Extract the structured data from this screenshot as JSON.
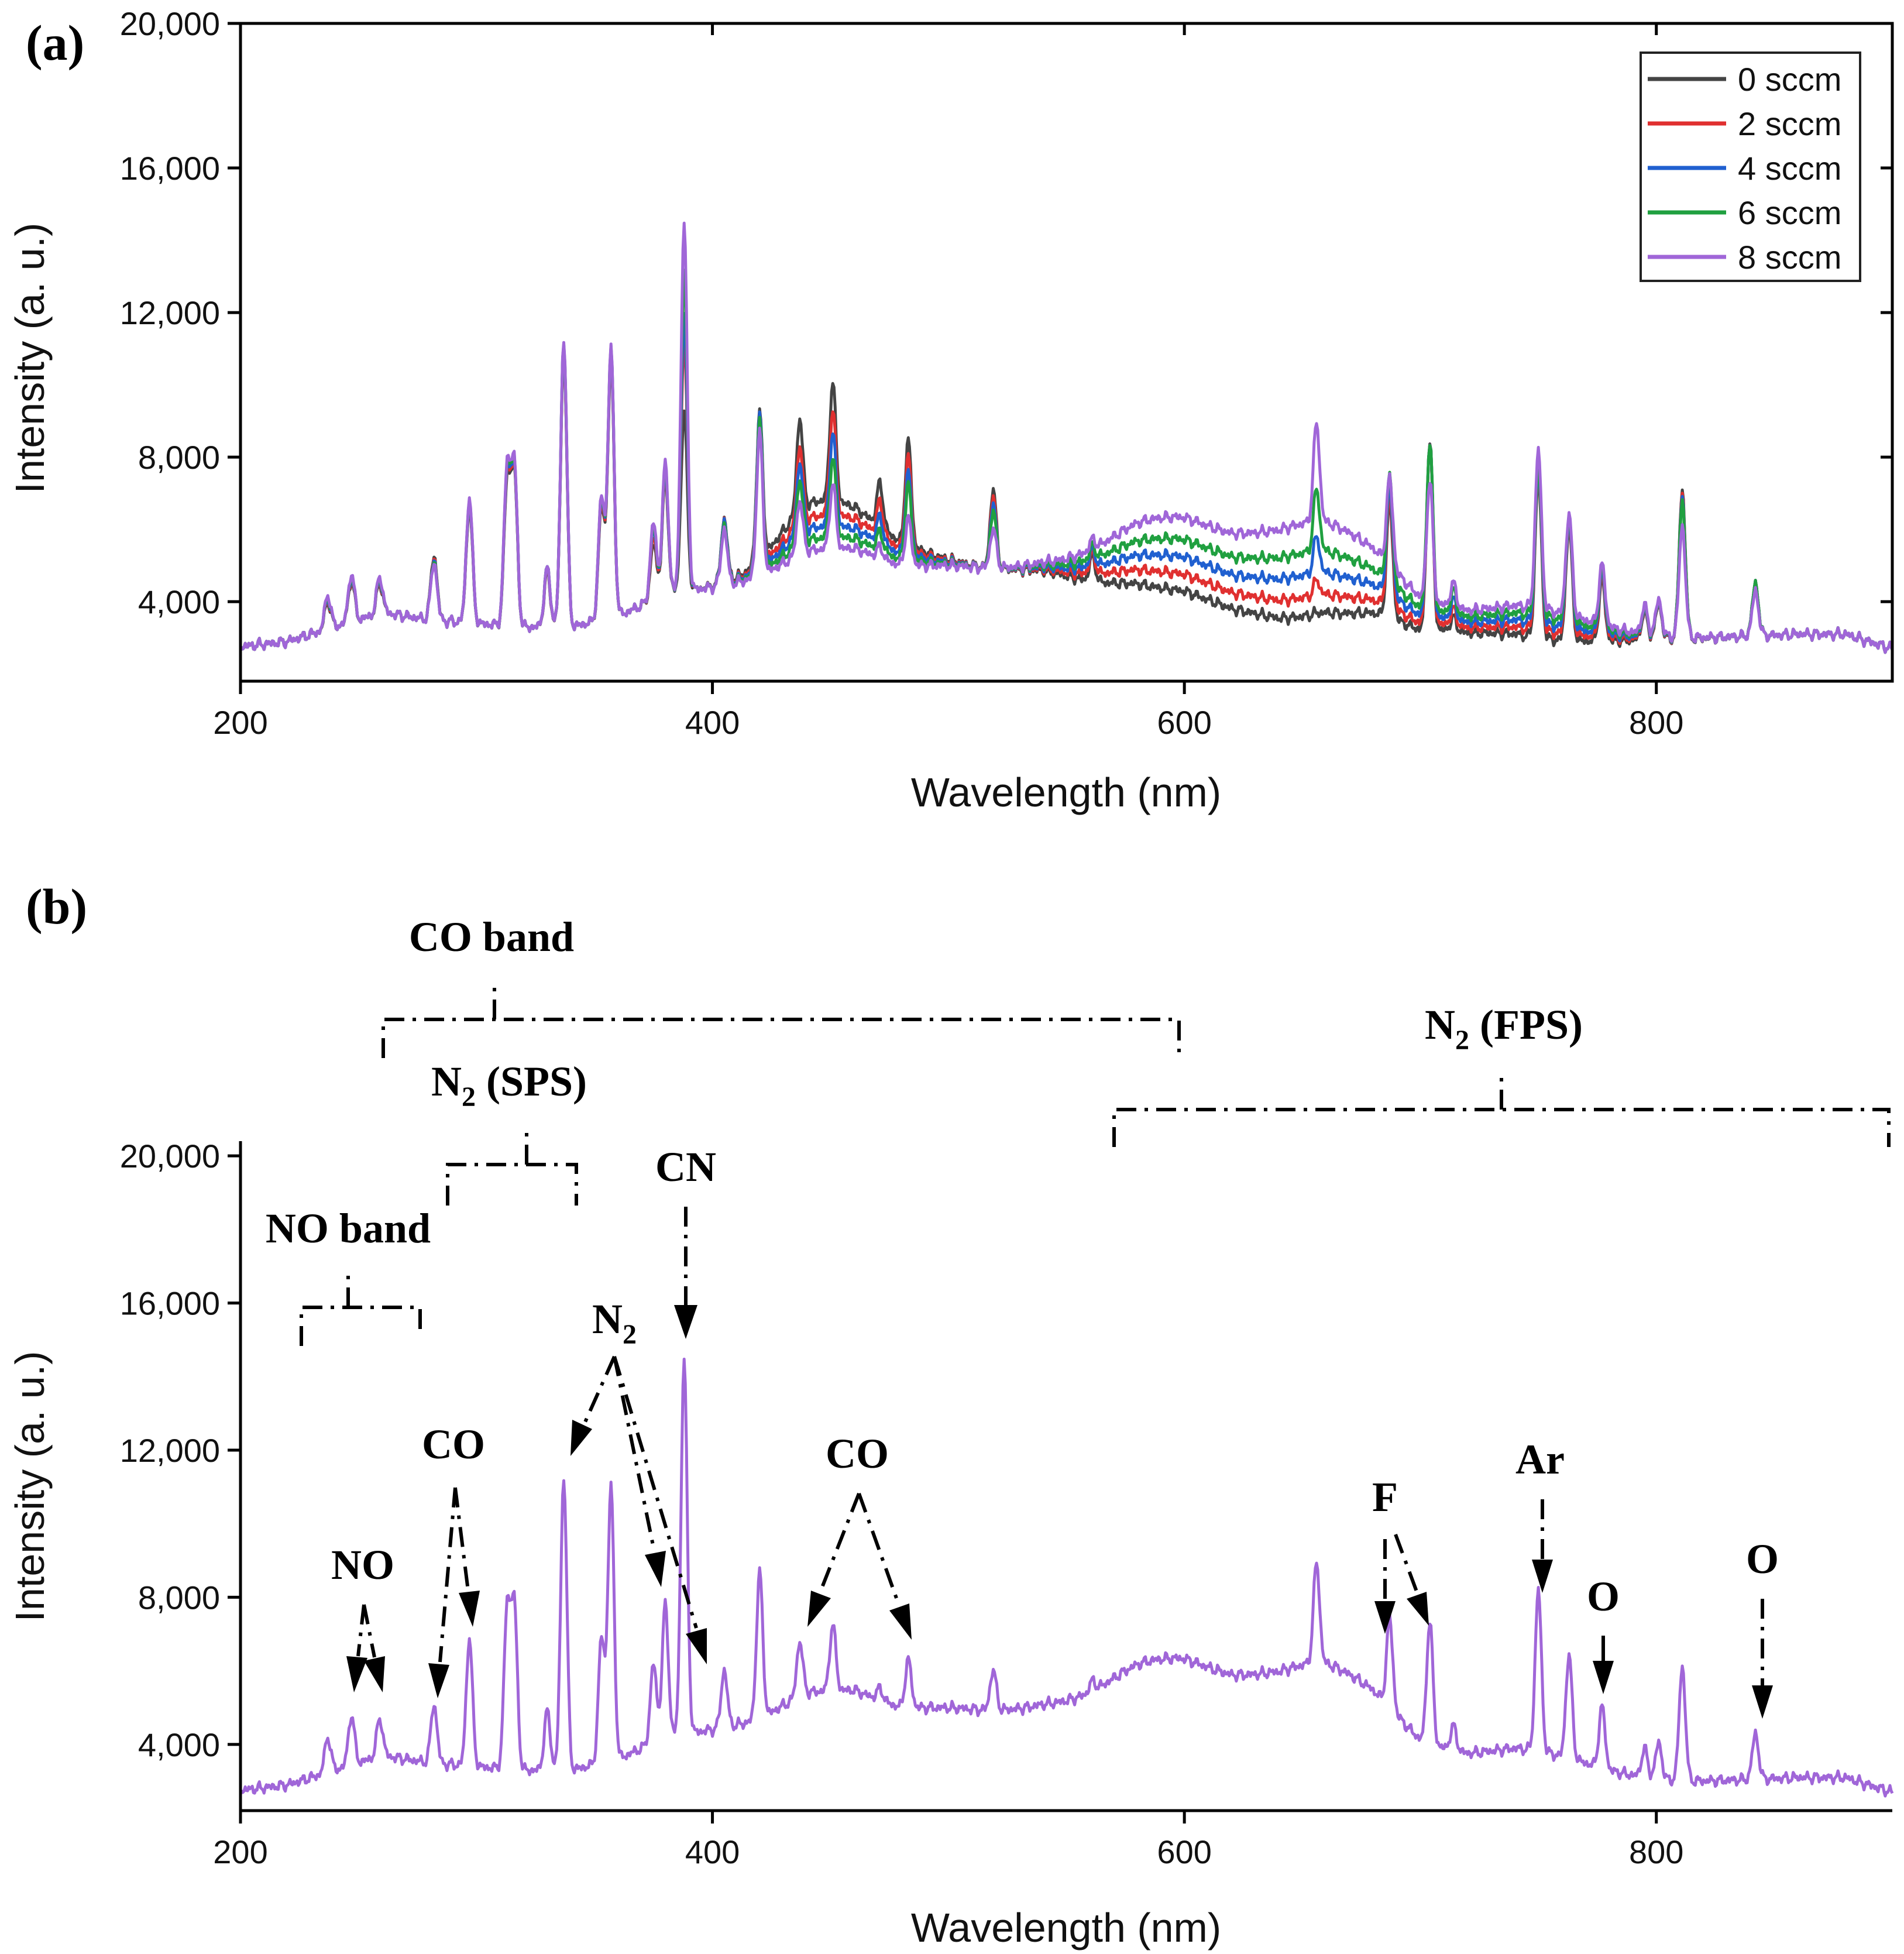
{
  "panels": {
    "a": {
      "label": "(a)"
    },
    "b": {
      "label": "(b)"
    }
  },
  "chart_data": [
    {
      "id": "a",
      "type": "line",
      "title": "",
      "xlabel": "Wavelength (nm)",
      "ylabel": "Intensity (a. u.)",
      "xlim": [
        200,
        900
      ],
      "ylim": [
        1800,
        20000
      ],
      "xticks": [
        200,
        400,
        600,
        800
      ],
      "xtick_labels": [
        "200",
        "400",
        "600",
        "800"
      ],
      "yticks": [
        4000,
        8000,
        12000,
        16000,
        20000
      ],
      "ytick_labels": [
        "4,000",
        "8,000",
        "12,000",
        "16,000",
        "20,000"
      ],
      "legend_position": "top-right",
      "baseline": [
        [
          200,
          2750
        ],
        [
          220,
          2900
        ],
        [
          240,
          3300
        ],
        [
          260,
          3700
        ],
        [
          280,
          3500
        ],
        [
          300,
          3400
        ],
        [
          320,
          3300
        ],
        [
          340,
          3300
        ],
        [
          360,
          3600
        ],
        [
          380,
          4200
        ],
        [
          400,
          4400
        ],
        [
          420,
          4600
        ],
        [
          440,
          5200
        ],
        [
          460,
          5400
        ],
        [
          480,
          5000
        ],
        [
          500,
          5000
        ],
        [
          520,
          4900
        ],
        [
          540,
          4900
        ],
        [
          560,
          4700
        ],
        [
          580,
          4800
        ],
        [
          600,
          4700
        ],
        [
          620,
          4300
        ],
        [
          640,
          4200
        ],
        [
          660,
          4400
        ],
        [
          680,
          4200
        ],
        [
          700,
          3500
        ],
        [
          720,
          3400
        ],
        [
          740,
          3500
        ],
        [
          760,
          3300
        ],
        [
          780,
          3100
        ],
        [
          800,
          3000
        ],
        [
          820,
          3000
        ],
        [
          840,
          3050
        ],
        [
          860,
          3100
        ],
        [
          880,
          3100
        ],
        [
          900,
          2700
        ]
      ],
      "series": [
        {
          "name": "0 sccm",
          "color": "#444444",
          "peaks": [
            [
              237,
              4000
            ],
            [
              247,
              4600
            ],
            [
              259,
              4500
            ],
            [
              282,
              5300
            ],
            [
              297,
              6700
            ],
            [
              313,
              7300
            ],
            [
              316,
              7600
            ],
            [
              330,
              4800
            ],
            [
              337,
              11000
            ],
            [
              353,
              6600
            ],
            [
              357,
              10700
            ],
            [
              375,
              5600
            ],
            [
              380,
              7400
            ],
            [
              388,
              9300
            ],
            [
              405,
              6200
            ],
            [
              420,
              8700
            ],
            [
              437,
              7700
            ],
            [
              451,
              8600
            ],
            [
              471,
              6400
            ],
            [
              483,
              7900
            ],
            [
              519,
              7100
            ],
            [
              561,
              5400
            ],
            [
              656,
              4400
            ],
            [
              687,
              7200
            ],
            [
              704,
              8700
            ],
            [
              714,
              3800
            ],
            [
              750,
              7900
            ],
            [
              763,
              6500
            ],
            [
              777,
              4800
            ],
            [
              795,
              3800
            ],
            [
              801,
              4000
            ],
            [
              811,
              7100
            ],
            [
              842,
              4500
            ]
          ],
          "bumps": [
            [
              440,
              1100,
              15
            ],
            [
              465,
              800,
              20
            ],
            [
              590,
              -300,
              25
            ],
            [
              655,
              -700,
              30
            ],
            [
              750,
              -400,
              25
            ]
          ]
        },
        {
          "name": "2 sccm",
          "color": "#e03030",
          "peaks": [
            [
              237,
              4050
            ],
            [
              247,
              4650
            ],
            [
              259,
              4550
            ],
            [
              282,
              5250
            ],
            [
              297,
              6750
            ],
            [
              313,
              7400
            ],
            [
              316,
              7650
            ],
            [
              330,
              4850
            ],
            [
              337,
              11100
            ],
            [
              353,
              6700
            ],
            [
              357,
              10800
            ],
            [
              375,
              5800
            ],
            [
              380,
              7500
            ],
            [
              388,
              11300
            ],
            [
              405,
              6200
            ],
            [
              420,
              8750
            ],
            [
              437,
              7300
            ],
            [
              451,
              8200
            ],
            [
              471,
              6100
            ],
            [
              483,
              7600
            ],
            [
              519,
              6900
            ],
            [
              561,
              5300
            ],
            [
              656,
              4800
            ],
            [
              687,
              7100
            ],
            [
              704,
              8500
            ],
            [
              714,
              3900
            ],
            [
              750,
              7800
            ],
            [
              763,
              6400
            ],
            [
              777,
              4800
            ],
            [
              795,
              3800
            ],
            [
              801,
              4000
            ],
            [
              811,
              7000
            ],
            [
              842,
              4500
            ]
          ],
          "bumps": [
            [
              440,
              800,
              15
            ],
            [
              465,
              600,
              20
            ],
            [
              590,
              100,
              25
            ],
            [
              655,
              -200,
              30
            ],
            [
              750,
              -200,
              25
            ]
          ]
        },
        {
          "name": "4 sccm",
          "color": "#2060d0",
          "peaks": [
            [
              237,
              4100
            ],
            [
              247,
              4700
            ],
            [
              259,
              4600
            ],
            [
              282,
              5200
            ],
            [
              297,
              6800
            ],
            [
              313,
              7500
            ],
            [
              316,
              7700
            ],
            [
              330,
              4900
            ],
            [
              337,
              11200
            ],
            [
              353,
              6800
            ],
            [
              357,
              10900
            ],
            [
              375,
              6000
            ],
            [
              380,
              7600
            ],
            [
              388,
              12000
            ],
            [
              405,
              6200
            ],
            [
              420,
              8850
            ],
            [
              437,
              7100
            ],
            [
              451,
              7900
            ],
            [
              471,
              5900
            ],
            [
              483,
              7300
            ],
            [
              519,
              6700
            ],
            [
              561,
              5200
            ],
            [
              656,
              5400
            ],
            [
              687,
              7000
            ],
            [
              704,
              8300
            ],
            [
              714,
              4000
            ],
            [
              750,
              7700
            ],
            [
              763,
              6300
            ],
            [
              777,
              4800
            ],
            [
              795,
              3800
            ],
            [
              801,
              4000
            ],
            [
              811,
              6900
            ],
            [
              842,
              4500
            ]
          ],
          "bumps": [
            [
              440,
              600,
              15
            ],
            [
              465,
              400,
              20
            ],
            [
              590,
              500,
              25
            ],
            [
              655,
              400,
              30
            ],
            [
              750,
              0,
              25
            ]
          ]
        },
        {
          "name": "6 sccm",
          "color": "#20a040",
          "peaks": [
            [
              237,
              4150
            ],
            [
              247,
              4750
            ],
            [
              259,
              4650
            ],
            [
              282,
              5150
            ],
            [
              297,
              6850
            ],
            [
              313,
              7600
            ],
            [
              316,
              7750
            ],
            [
              330,
              4900
            ],
            [
              337,
              11250
            ],
            [
              353,
              6850
            ],
            [
              357,
              10950
            ],
            [
              375,
              6100
            ],
            [
              380,
              7700
            ],
            [
              388,
              13200
            ],
            [
              405,
              6100
            ],
            [
              420,
              8800
            ],
            [
              437,
              6900
            ],
            [
              451,
              7500
            ],
            [
              471,
              5700
            ],
            [
              483,
              7100
            ],
            [
              519,
              6500
            ],
            [
              561,
              5100
            ],
            [
              656,
              6100
            ],
            [
              687,
              6900
            ],
            [
              704,
              8100
            ],
            [
              714,
              4100
            ],
            [
              750,
              7600
            ],
            [
              763,
              6200
            ],
            [
              777,
              4800
            ],
            [
              795,
              3800
            ],
            [
              801,
              4000
            ],
            [
              811,
              6800
            ],
            [
              842,
              4500
            ]
          ],
          "bumps": [
            [
              440,
              400,
              15
            ],
            [
              465,
              200,
              20
            ],
            [
              590,
              900,
              25
            ],
            [
              655,
              1000,
              30
            ],
            [
              750,
              200,
              25
            ]
          ]
        },
        {
          "name": "8 sccm",
          "color": "#a066d8",
          "peaks": [
            [
              237,
              4200
            ],
            [
              247,
              4800
            ],
            [
              259,
              4700
            ],
            [
              282,
              5100
            ],
            [
              297,
              6900
            ],
            [
              313,
              7700
            ],
            [
              316,
              7800
            ],
            [
              330,
              4900
            ],
            [
              337,
              11300
            ],
            [
              353,
              6900
            ],
            [
              357,
              11000
            ],
            [
              375,
              6200
            ],
            [
              380,
              7800
            ],
            [
              388,
              14500
            ],
            [
              405,
              6000
            ],
            [
              420,
              8600
            ],
            [
              437,
              6600
            ],
            [
              451,
              7100
            ],
            [
              471,
              5500
            ],
            [
              483,
              6300
            ],
            [
              519,
              6000
            ],
            [
              561,
              5000
            ],
            [
              656,
              7100
            ],
            [
              687,
              6400
            ],
            [
              704,
              6800
            ],
            [
              714,
              4100
            ],
            [
              750,
              7800
            ],
            [
              763,
              6100
            ],
            [
              777,
              4800
            ],
            [
              795,
              3800
            ],
            [
              801,
              4000
            ],
            [
              811,
              6100
            ],
            [
              842,
              4300
            ]
          ],
          "bumps": [
            [
              440,
              200,
              15
            ],
            [
              465,
              0,
              20
            ],
            [
              590,
              1400,
              25
            ],
            [
              655,
              1800,
              30
            ],
            [
              750,
              400,
              25
            ]
          ]
        }
      ]
    },
    {
      "id": "b",
      "type": "line",
      "title": "",
      "xlabel": "Wavelength (nm)",
      "ylabel": "Intensity (a. u.)",
      "xlim": [
        200,
        900
      ],
      "ylim": [
        2200,
        20400
      ],
      "xticks": [
        200,
        400,
        600,
        800
      ],
      "xtick_labels": [
        "200",
        "400",
        "600",
        "800"
      ],
      "yticks": [
        4000,
        8000,
        12000,
        16000,
        20000
      ],
      "ytick_labels": [
        "4,000",
        "8,000",
        "12,000",
        "16,000",
        "20,000"
      ],
      "series_ref": "8 sccm",
      "annotations": {
        "co_band": "CO band",
        "n2_sps_main": "N",
        "n2_sps_sub": "2",
        "n2_sps_rest": " (SPS)",
        "n2_fps_main": "N",
        "n2_fps_sub": "2",
        "n2_fps_rest": " (FPS)",
        "no_band": "NO band",
        "cn": "CN",
        "n2_main": "N",
        "n2_sub": "2",
        "co_left": "CO",
        "co_mid": "CO",
        "no": "NO",
        "f": "F",
        "ar": "Ar",
        "o_777": "O",
        "o_844": "O"
      }
    }
  ]
}
